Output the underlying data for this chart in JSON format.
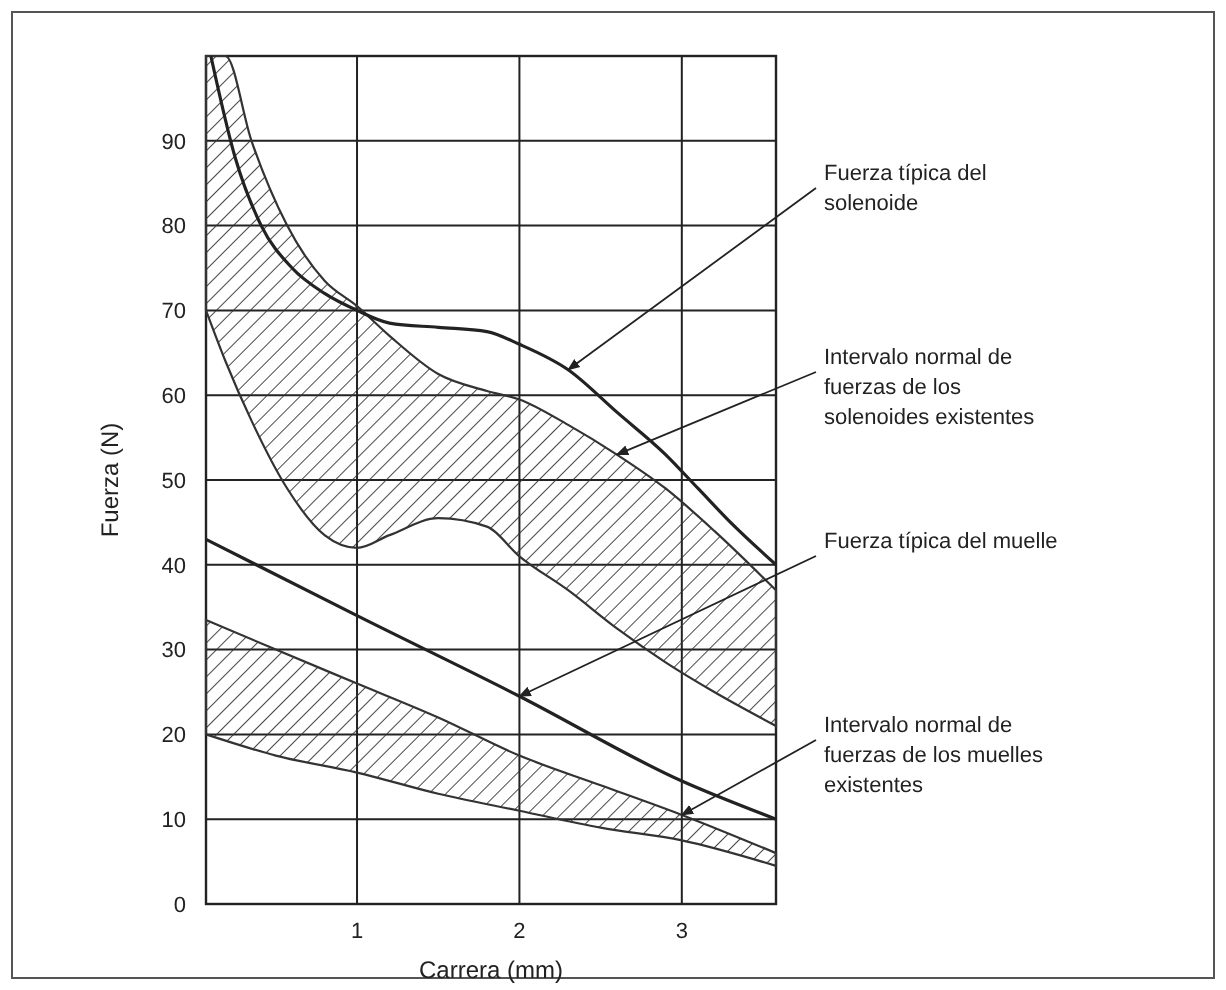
{
  "chart_data": {
    "type": "line",
    "xlabel": "Carrera (mm)",
    "ylabel": "Fuerza (N)",
    "xlim": [
      0.07,
      3.58
    ],
    "ylim": [
      0,
      100
    ],
    "xticks": [
      1,
      2,
      3
    ],
    "yticks": [
      0,
      10,
      20,
      30,
      40,
      50,
      60,
      70,
      80,
      90
    ],
    "grid": true,
    "line_style": "solid",
    "marker": "none",
    "series": [
      {
        "color": "#333333",
        "x": [
          0.07,
          0.19,
          0.35,
          0.57,
          0.8,
          1.0,
          1.2,
          1.5,
          1.8,
          2.0,
          2.3,
          2.6,
          2.9,
          3.2,
          3.58
        ],
        "values": [
          null,
          null,
          null,
          null,
          null,
          null,
          null,
          null,
          null,
          null,
          null,
          null,
          null,
          null,
          null
        ],
        "upper": [
          100,
          100,
          90,
          80,
          73.5,
          70.5,
          67,
          62.5,
          60.5,
          59.5,
          56.5,
          53,
          49,
          44,
          37
        ],
        "lower": [
          70,
          64,
          57,
          49,
          43.5,
          42,
          43.5,
          45.5,
          44.5,
          41,
          37,
          32.5,
          28.5,
          25,
          21
        ]
      },
      {
        "type": "line",
        "color": "#222222",
        "x": [
          0.1,
          0.25,
          0.41,
          0.6,
          0.8,
          1.0,
          1.2,
          1.5,
          1.8,
          2.0,
          2.3,
          2.6,
          2.9,
          3.1,
          3.3,
          3.58
        ],
        "values": [
          100,
          88,
          80,
          75,
          72,
          70,
          68.5,
          68,
          67.5,
          66,
          63,
          58,
          53,
          49,
          45,
          40
        ]
      },
      {
        "color": "#333333",
        "x": [
          0.07,
          0.5,
          1.0,
          1.5,
          2.0,
          2.5,
          3.0,
          3.58
        ],
        "values": [
          null,
          null,
          null,
          null,
          null,
          null,
          null,
          null
        ],
        "upper": [
          33.5,
          30,
          26,
          22,
          17.5,
          14,
          10.5,
          6
        ],
        "lower": [
          20,
          17.5,
          15.5,
          13,
          11,
          9,
          7.5,
          4.5
        ]
      },
      {
        "type": "line",
        "color": "#222222",
        "x": [
          0.07,
          1.0,
          2.0,
          3.0,
          3.58
        ],
        "values": [
          43,
          34,
          24.5,
          14.5,
          10
        ]
      }
    ],
    "annotations": [
      {
        "text": "Fuerza típica del solenoide",
        "x": 2.3,
        "y": 63
      },
      {
        "text": "Intervalo normal de fuerzas de los solenoides existentes",
        "x": 2.6,
        "y": 53
      },
      {
        "text": "Fuerza típica del muelle",
        "x": 2.0,
        "y": 24.5
      },
      {
        "text": "Intervalo normal de fuerzas de los muelles existentes",
        "x": 3.0,
        "y": 10.5
      }
    ]
  }
}
